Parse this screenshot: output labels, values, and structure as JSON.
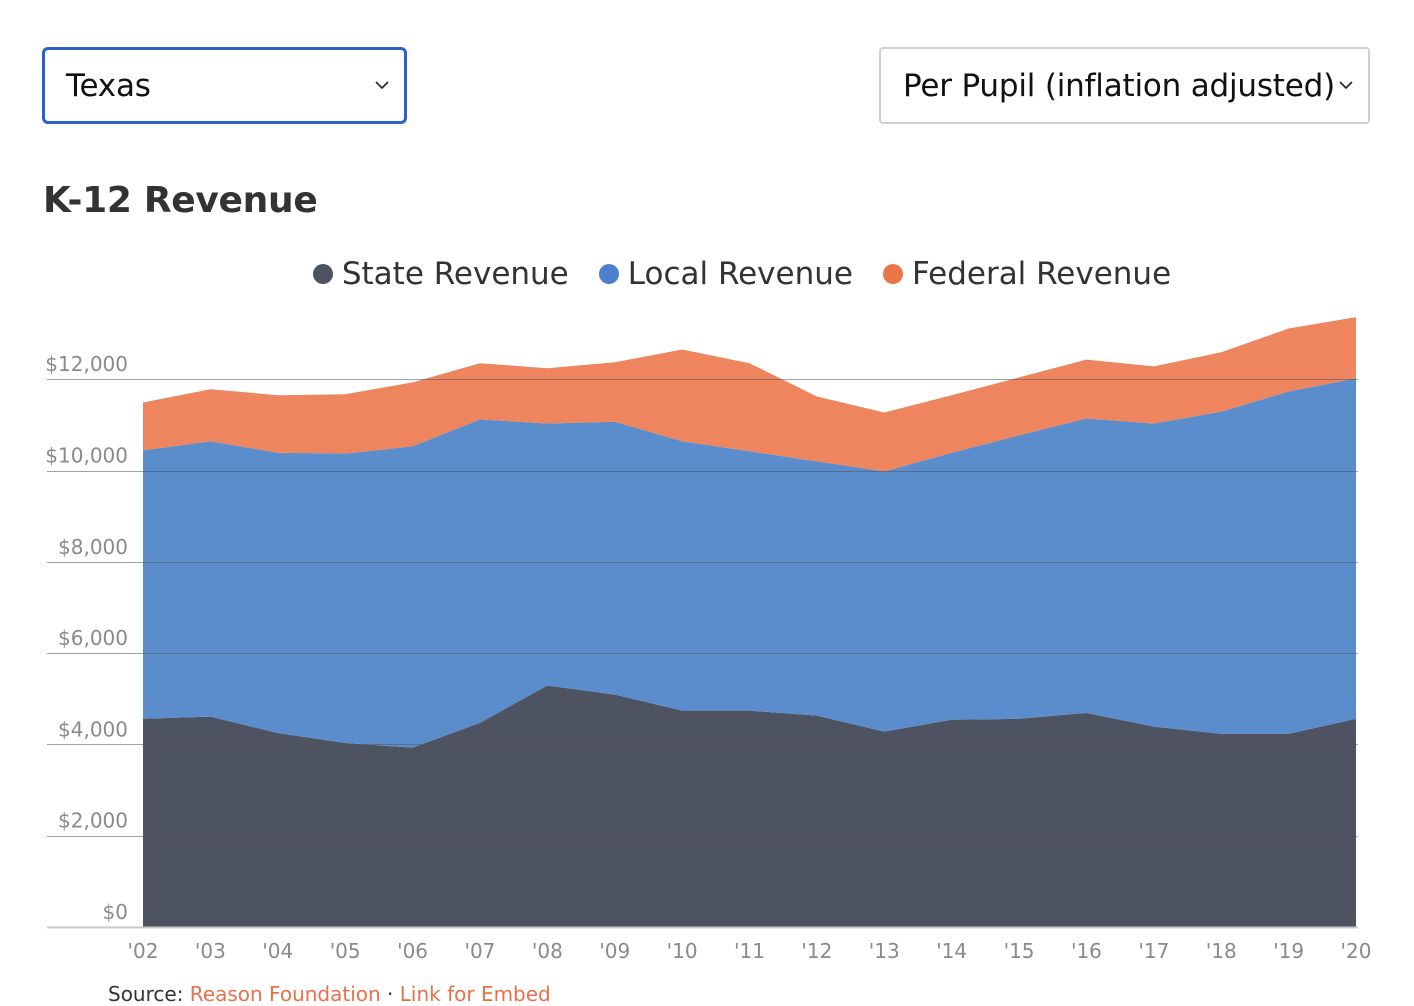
{
  "controls": {
    "state_select": {
      "value": "Texas"
    },
    "measure_select": {
      "value": "Per Pupil (inflation adjusted)"
    }
  },
  "colors": {
    "state": "#4d5360",
    "local": "#5b8ccc",
    "federal": "#ef855e",
    "link": "#e8714a",
    "focus_border": "#2c62c7"
  },
  "chart_data": {
    "type": "area",
    "stacked": true,
    "title": "K-12 Revenue",
    "xlabel": "",
    "ylabel": "",
    "categories": [
      "'02",
      "'03",
      "'04",
      "'05",
      "'06",
      "'07",
      "'08",
      "'09",
      "'10",
      "'11",
      "'12",
      "'13",
      "'14",
      "'15",
      "'16",
      "'17",
      "'18",
      "'19",
      "'20"
    ],
    "yticks": [
      0,
      2000,
      4000,
      6000,
      8000,
      10000,
      12000
    ],
    "ytick_labels": [
      "$0",
      "$2,000",
      "$4,000",
      "$6,000",
      "$8,000",
      "$10,000",
      "$12,000"
    ],
    "ylim": [
      0,
      13400
    ],
    "grid": true,
    "legend_position": "top-center",
    "series": [
      {
        "name": "State Revenue",
        "color": "#4d5360",
        "values": [
          4560,
          4610,
          4250,
          4030,
          3930,
          4470,
          5290,
          5090,
          4740,
          4740,
          4630,
          4280,
          4540,
          4560,
          4690,
          4390,
          4230,
          4230,
          4560
        ]
      },
      {
        "name": "Local Revenue",
        "color": "#5b8ccc",
        "values": [
          5880,
          6030,
          6140,
          6340,
          6600,
          6650,
          5740,
          5980,
          5900,
          5680,
          5570,
          5700,
          5850,
          6210,
          6450,
          6640,
          7060,
          7500,
          7460
        ]
      },
      {
        "name": "Federal Revenue",
        "color": "#ef855e",
        "values": [
          1050,
          1140,
          1260,
          1300,
          1400,
          1230,
          1210,
          1300,
          2010,
          1930,
          1420,
          1290,
          1260,
          1270,
          1290,
          1250,
          1300,
          1380,
          1340
        ]
      }
    ]
  },
  "footer": {
    "source_prefix": "Source: ",
    "source_link": "Reason Foundation",
    "separator": " · ",
    "embed_link": "Link for Embed"
  }
}
